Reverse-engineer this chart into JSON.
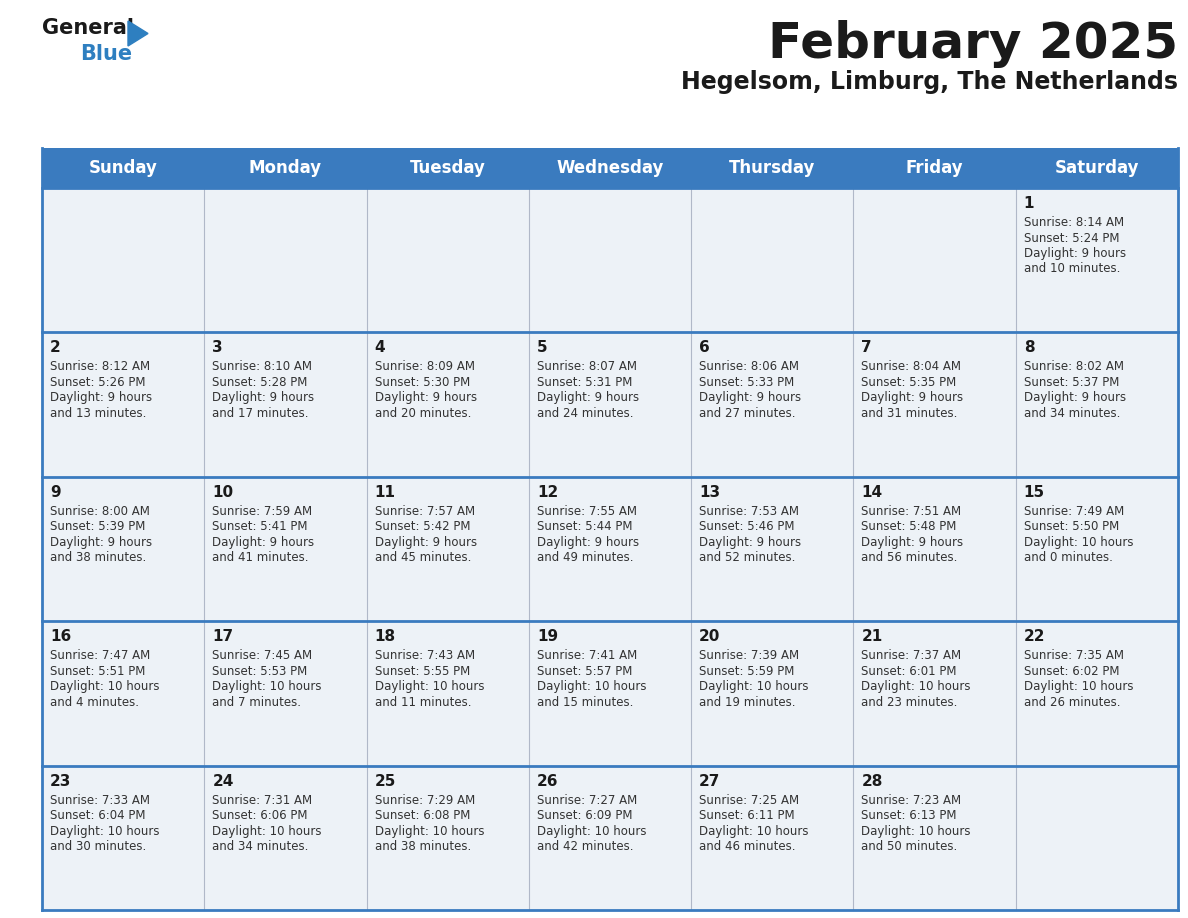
{
  "title": "February 2025",
  "subtitle": "Hegelsom, Limburg, The Netherlands",
  "days_of_week": [
    "Sunday",
    "Monday",
    "Tuesday",
    "Wednesday",
    "Thursday",
    "Friday",
    "Saturday"
  ],
  "header_bg": "#3a7bbf",
  "header_text": "#ffffff",
  "cell_bg": "#edf2f7",
  "border_color": "#3a7bbf",
  "cell_border_color": "#3a7bbf",
  "title_color": "#1a1a1a",
  "subtitle_color": "#1a1a1a",
  "day_num_color": "#1a1a1a",
  "info_color": "#333333",
  "logo_general_color": "#1a1a1a",
  "logo_blue_color": "#2e7fc0",
  "calendar": [
    [
      null,
      null,
      null,
      null,
      null,
      null,
      {
        "day": 1,
        "sunrise": "8:14 AM",
        "sunset": "5:24 PM",
        "daylight_line1": "9 hours",
        "daylight_line2": "and 10 minutes."
      }
    ],
    [
      {
        "day": 2,
        "sunrise": "8:12 AM",
        "sunset": "5:26 PM",
        "daylight_line1": "9 hours",
        "daylight_line2": "and 13 minutes."
      },
      {
        "day": 3,
        "sunrise": "8:10 AM",
        "sunset": "5:28 PM",
        "daylight_line1": "9 hours",
        "daylight_line2": "and 17 minutes."
      },
      {
        "day": 4,
        "sunrise": "8:09 AM",
        "sunset": "5:30 PM",
        "daylight_line1": "9 hours",
        "daylight_line2": "and 20 minutes."
      },
      {
        "day": 5,
        "sunrise": "8:07 AM",
        "sunset": "5:31 PM",
        "daylight_line1": "9 hours",
        "daylight_line2": "and 24 minutes."
      },
      {
        "day": 6,
        "sunrise": "8:06 AM",
        "sunset": "5:33 PM",
        "daylight_line1": "9 hours",
        "daylight_line2": "and 27 minutes."
      },
      {
        "day": 7,
        "sunrise": "8:04 AM",
        "sunset": "5:35 PM",
        "daylight_line1": "9 hours",
        "daylight_line2": "and 31 minutes."
      },
      {
        "day": 8,
        "sunrise": "8:02 AM",
        "sunset": "5:37 PM",
        "daylight_line1": "9 hours",
        "daylight_line2": "and 34 minutes."
      }
    ],
    [
      {
        "day": 9,
        "sunrise": "8:00 AM",
        "sunset": "5:39 PM",
        "daylight_line1": "9 hours",
        "daylight_line2": "and 38 minutes."
      },
      {
        "day": 10,
        "sunrise": "7:59 AM",
        "sunset": "5:41 PM",
        "daylight_line1": "9 hours",
        "daylight_line2": "and 41 minutes."
      },
      {
        "day": 11,
        "sunrise": "7:57 AM",
        "sunset": "5:42 PM",
        "daylight_line1": "9 hours",
        "daylight_line2": "and 45 minutes."
      },
      {
        "day": 12,
        "sunrise": "7:55 AM",
        "sunset": "5:44 PM",
        "daylight_line1": "9 hours",
        "daylight_line2": "and 49 minutes."
      },
      {
        "day": 13,
        "sunrise": "7:53 AM",
        "sunset": "5:46 PM",
        "daylight_line1": "9 hours",
        "daylight_line2": "and 52 minutes."
      },
      {
        "day": 14,
        "sunrise": "7:51 AM",
        "sunset": "5:48 PM",
        "daylight_line1": "9 hours",
        "daylight_line2": "and 56 minutes."
      },
      {
        "day": 15,
        "sunrise": "7:49 AM",
        "sunset": "5:50 PM",
        "daylight_line1": "10 hours",
        "daylight_line2": "and 0 minutes."
      }
    ],
    [
      {
        "day": 16,
        "sunrise": "7:47 AM",
        "sunset": "5:51 PM",
        "daylight_line1": "10 hours",
        "daylight_line2": "and 4 minutes."
      },
      {
        "day": 17,
        "sunrise": "7:45 AM",
        "sunset": "5:53 PM",
        "daylight_line1": "10 hours",
        "daylight_line2": "and 7 minutes."
      },
      {
        "day": 18,
        "sunrise": "7:43 AM",
        "sunset": "5:55 PM",
        "daylight_line1": "10 hours",
        "daylight_line2": "and 11 minutes."
      },
      {
        "day": 19,
        "sunrise": "7:41 AM",
        "sunset": "5:57 PM",
        "daylight_line1": "10 hours",
        "daylight_line2": "and 15 minutes."
      },
      {
        "day": 20,
        "sunrise": "7:39 AM",
        "sunset": "5:59 PM",
        "daylight_line1": "10 hours",
        "daylight_line2": "and 19 minutes."
      },
      {
        "day": 21,
        "sunrise": "7:37 AM",
        "sunset": "6:01 PM",
        "daylight_line1": "10 hours",
        "daylight_line2": "and 23 minutes."
      },
      {
        "day": 22,
        "sunrise": "7:35 AM",
        "sunset": "6:02 PM",
        "daylight_line1": "10 hours",
        "daylight_line2": "and 26 minutes."
      }
    ],
    [
      {
        "day": 23,
        "sunrise": "7:33 AM",
        "sunset": "6:04 PM",
        "daylight_line1": "10 hours",
        "daylight_line2": "and 30 minutes."
      },
      {
        "day": 24,
        "sunrise": "7:31 AM",
        "sunset": "6:06 PM",
        "daylight_line1": "10 hours",
        "daylight_line2": "and 34 minutes."
      },
      {
        "day": 25,
        "sunrise": "7:29 AM",
        "sunset": "6:08 PM",
        "daylight_line1": "10 hours",
        "daylight_line2": "and 38 minutes."
      },
      {
        "day": 26,
        "sunrise": "7:27 AM",
        "sunset": "6:09 PM",
        "daylight_line1": "10 hours",
        "daylight_line2": "and 42 minutes."
      },
      {
        "day": 27,
        "sunrise": "7:25 AM",
        "sunset": "6:11 PM",
        "daylight_line1": "10 hours",
        "daylight_line2": "and 46 minutes."
      },
      {
        "day": 28,
        "sunrise": "7:23 AM",
        "sunset": "6:13 PM",
        "daylight_line1": "10 hours",
        "daylight_line2": "and 50 minutes."
      },
      null
    ]
  ]
}
